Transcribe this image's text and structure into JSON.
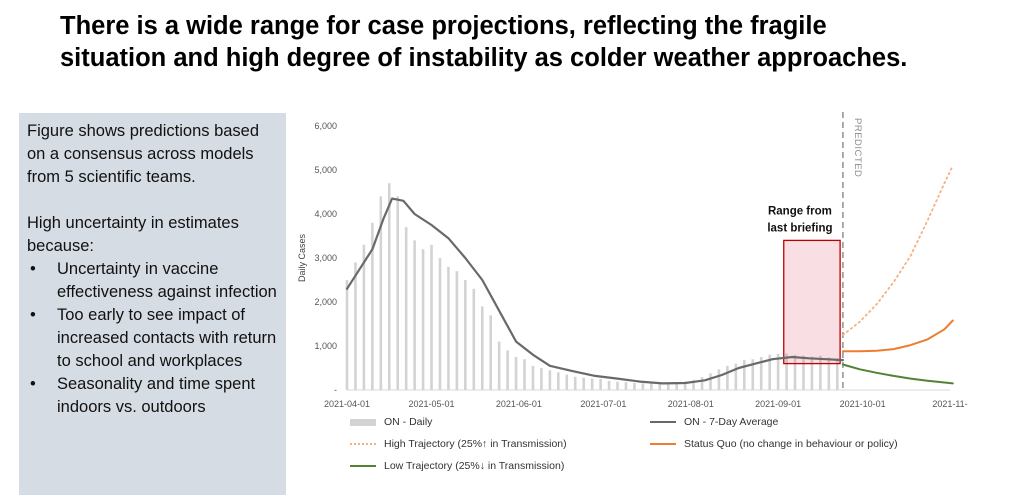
{
  "slide": {
    "title_line1": "There is a wide range for case projections, reflecting the fragile",
    "title_line2": "situation and high degree of instability as colder weather approaches."
  },
  "sidebar": {
    "intro": "Figure shows predictions based on a consensus across models from 5 scientific teams.",
    "uncertainty_heading": "High uncertainty in estimates because:",
    "bullet_char": "•",
    "bullets": [
      "Uncertainty in vaccine effectiveness against infection",
      "Too early to see impact of increased contacts with return to school and workplaces",
      "Seasonality and time spent indoors vs. outdoors"
    ]
  },
  "chart_data": {
    "type": "line",
    "ylabel": "Daily Cases",
    "ylim": [
      0,
      6000
    ],
    "yticks": [
      "-",
      "1,000",
      "2,000",
      "3,000",
      "4,000",
      "5,000",
      "6,000"
    ],
    "xlim": [
      "2021-04-01",
      "2021-11-01"
    ],
    "xticks": [
      "2021-04-01",
      "2021-05-01",
      "2021-06-01",
      "2021-07-01",
      "2021-08-01",
      "2021-09-01",
      "2021-10-01",
      "2021-11-"
    ],
    "predicted_start": "2021-09-24",
    "predicted_label": "PREDICTED",
    "annotation": {
      "text_line1": "Range from",
      "text_line2": "last briefing",
      "date_start": "2021-09-03",
      "date_end": "2021-09-23",
      "y_low": 600,
      "y_high": 3400
    },
    "series": [
      {
        "name": "ON - Daily",
        "type": "bar",
        "color": "#d3d3d3",
        "points": [
          [
            "2021-04-01",
            2500
          ],
          [
            "2021-04-04",
            2900
          ],
          [
            "2021-04-07",
            3300
          ],
          [
            "2021-04-10",
            3800
          ],
          [
            "2021-04-13",
            4400
          ],
          [
            "2021-04-16",
            4700
          ],
          [
            "2021-04-19",
            4400
          ],
          [
            "2021-04-22",
            3700
          ],
          [
            "2021-04-25",
            3400
          ],
          [
            "2021-04-28",
            3200
          ],
          [
            "2021-05-01",
            3300
          ],
          [
            "2021-05-04",
            3000
          ],
          [
            "2021-05-07",
            2800
          ],
          [
            "2021-05-10",
            2700
          ],
          [
            "2021-05-13",
            2500
          ],
          [
            "2021-05-16",
            2300
          ],
          [
            "2021-05-19",
            1900
          ],
          [
            "2021-05-22",
            1700
          ],
          [
            "2021-05-25",
            1100
          ],
          [
            "2021-05-28",
            900
          ],
          [
            "2021-05-31",
            750
          ],
          [
            "2021-06-03",
            700
          ],
          [
            "2021-06-06",
            550
          ],
          [
            "2021-06-09",
            500
          ],
          [
            "2021-06-12",
            450
          ],
          [
            "2021-06-15",
            400
          ],
          [
            "2021-06-18",
            350
          ],
          [
            "2021-06-21",
            300
          ],
          [
            "2021-06-24",
            280
          ],
          [
            "2021-06-27",
            260
          ],
          [
            "2021-06-30",
            250
          ],
          [
            "2021-07-03",
            210
          ],
          [
            "2021-07-06",
            190
          ],
          [
            "2021-07-09",
            180
          ],
          [
            "2021-07-12",
            160
          ],
          [
            "2021-07-15",
            150
          ],
          [
            "2021-07-18",
            145
          ],
          [
            "2021-07-21",
            150
          ],
          [
            "2021-07-24",
            160
          ],
          [
            "2021-07-27",
            170
          ],
          [
            "2021-07-30",
            190
          ],
          [
            "2021-08-02",
            220
          ],
          [
            "2021-08-05",
            290
          ],
          [
            "2021-08-08",
            380
          ],
          [
            "2021-08-11",
            470
          ],
          [
            "2021-08-14",
            550
          ],
          [
            "2021-08-17",
            600
          ],
          [
            "2021-08-20",
            680
          ],
          [
            "2021-08-23",
            700
          ],
          [
            "2021-08-26",
            750
          ],
          [
            "2021-08-29",
            800
          ],
          [
            "2021-09-01",
            820
          ],
          [
            "2021-09-04",
            830
          ],
          [
            "2021-09-07",
            800
          ],
          [
            "2021-09-10",
            780
          ],
          [
            "2021-09-13",
            760
          ],
          [
            "2021-09-16",
            780
          ],
          [
            "2021-09-19",
            740
          ],
          [
            "2021-09-22",
            720
          ]
        ]
      },
      {
        "name": "ON - 7-Day Average",
        "type": "line",
        "color": "#696969",
        "points": [
          [
            "2021-04-01",
            2300
          ],
          [
            "2021-04-05",
            2700
          ],
          [
            "2021-04-10",
            3200
          ],
          [
            "2021-04-14",
            3900
          ],
          [
            "2021-04-17",
            4350
          ],
          [
            "2021-04-21",
            4300
          ],
          [
            "2021-04-25",
            4000
          ],
          [
            "2021-05-01",
            3750
          ],
          [
            "2021-05-07",
            3450
          ],
          [
            "2021-05-13",
            3000
          ],
          [
            "2021-05-19",
            2500
          ],
          [
            "2021-05-25",
            1800
          ],
          [
            "2021-05-31",
            1100
          ],
          [
            "2021-06-06",
            800
          ],
          [
            "2021-06-12",
            550
          ],
          [
            "2021-06-20",
            430
          ],
          [
            "2021-06-28",
            320
          ],
          [
            "2021-07-06",
            260
          ],
          [
            "2021-07-14",
            190
          ],
          [
            "2021-07-22",
            150
          ],
          [
            "2021-07-30",
            160
          ],
          [
            "2021-08-06",
            220
          ],
          [
            "2021-08-12",
            340
          ],
          [
            "2021-08-18",
            500
          ],
          [
            "2021-08-24",
            600
          ],
          [
            "2021-08-30",
            700
          ],
          [
            "2021-09-06",
            750
          ],
          [
            "2021-09-12",
            720
          ],
          [
            "2021-09-18",
            700
          ],
          [
            "2021-09-24",
            680
          ]
        ]
      },
      {
        "name": "High Trajectory (25%↑ in Transmission)",
        "type": "line",
        "style": "dotted",
        "color": "#f4b183",
        "points": [
          [
            "2021-09-24",
            1250
          ],
          [
            "2021-09-30",
            1550
          ],
          [
            "2021-10-06",
            1950
          ],
          [
            "2021-10-12",
            2450
          ],
          [
            "2021-10-18",
            3050
          ],
          [
            "2021-10-24",
            3850
          ],
          [
            "2021-10-30",
            4700
          ],
          [
            "2021-11-02",
            5100
          ]
        ]
      },
      {
        "name": "Status Quo (no change in behaviour or policy)",
        "type": "line",
        "color": "#ed7d31",
        "points": [
          [
            "2021-09-24",
            880
          ],
          [
            "2021-09-30",
            880
          ],
          [
            "2021-10-06",
            890
          ],
          [
            "2021-10-12",
            930
          ],
          [
            "2021-10-18",
            1020
          ],
          [
            "2021-10-24",
            1150
          ],
          [
            "2021-10-30",
            1380
          ],
          [
            "2021-11-02",
            1580
          ]
        ]
      },
      {
        "name": "Low Trajectory (25%↓ in Transmission)",
        "type": "line",
        "color": "#548235",
        "points": [
          [
            "2021-09-24",
            580
          ],
          [
            "2021-09-30",
            470
          ],
          [
            "2021-10-06",
            390
          ],
          [
            "2021-10-12",
            320
          ],
          [
            "2021-10-18",
            260
          ],
          [
            "2021-10-24",
            210
          ],
          [
            "2021-10-30",
            170
          ],
          [
            "2021-11-02",
            150
          ]
        ]
      }
    ],
    "grid": false,
    "legend_position": "bottom"
  }
}
